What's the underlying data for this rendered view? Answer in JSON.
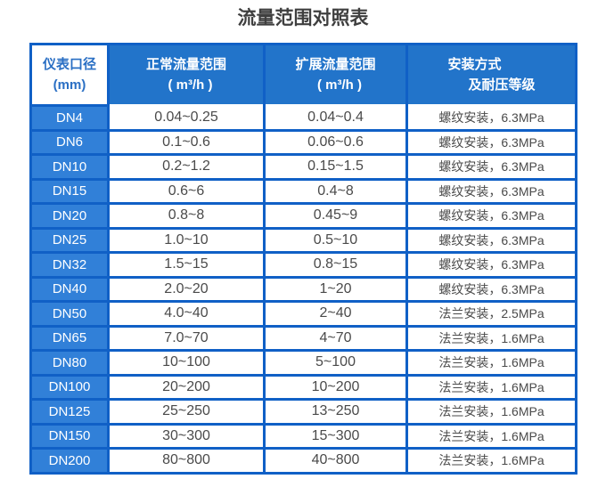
{
  "page": {
    "title": "流量范围对照表"
  },
  "colors": {
    "table_border_blue": "#1060c6",
    "header_bg_blue": "#2274ca",
    "diameter_column_bg_blue": "#3180d8",
    "header_text": "#ffffff",
    "diameter_header_text_blue": "#2a6fc4",
    "body_text_gray": "#4a4a4a",
    "title_text_gray": "#3f3f3f"
  },
  "table": {
    "headers": {
      "diameter": {
        "line1": "仪表口径",
        "line2": "(mm)"
      },
      "normal": {
        "line1": "正常流量范围",
        "line2": "( m³/h )"
      },
      "extended": {
        "line1": "扩展流量范围",
        "line2": "( m³/h )"
      },
      "installation": {
        "line1": "安装方式",
        "line2": "及耐压等级"
      }
    },
    "rows": [
      {
        "diameter": "DN4",
        "normal": "0.04~0.25",
        "extended": "0.04~0.4",
        "installation": "螺纹安装，6.3MPa"
      },
      {
        "diameter": "DN6",
        "normal": "0.1~0.6",
        "extended": "0.06~0.6",
        "installation": "螺纹安装，6.3MPa"
      },
      {
        "diameter": "DN10",
        "normal": "0.2~1.2",
        "extended": "0.15~1.5",
        "installation": "螺纹安装，6.3MPa"
      },
      {
        "diameter": "DN15",
        "normal": "0.6~6",
        "extended": "0.4~8",
        "installation": "螺纹安装，6.3MPa"
      },
      {
        "diameter": "DN20",
        "normal": "0.8~8",
        "extended": "0.45~9",
        "installation": "螺纹安装，6.3MPa"
      },
      {
        "diameter": "DN25",
        "normal": "1.0~10",
        "extended": "0.5~10",
        "installation": "螺纹安装，6.3MPa"
      },
      {
        "diameter": "DN32",
        "normal": "1.5~15",
        "extended": "0.8~15",
        "installation": "螺纹安装，6.3MPa"
      },
      {
        "diameter": "DN40",
        "normal": "2.0~20",
        "extended": "1~20",
        "installation": "螺纹安装，6.3MPa"
      },
      {
        "diameter": "DN50",
        "normal": "4.0~40",
        "extended": "2~40",
        "installation": "法兰安装，2.5MPa"
      },
      {
        "diameter": "DN65",
        "normal": "7.0~70",
        "extended": "4~70",
        "installation": "法兰安装，1.6MPa"
      },
      {
        "diameter": "DN80",
        "normal": "10~100",
        "extended": "5~100",
        "installation": "法兰安装，1.6MPa"
      },
      {
        "diameter": "DN100",
        "normal": "20~200",
        "extended": "10~200",
        "installation": "法兰安装，1.6MPa"
      },
      {
        "diameter": "DN125",
        "normal": "25~250",
        "extended": "13~250",
        "installation": "法兰安装，1.6MPa"
      },
      {
        "diameter": "DN150",
        "normal": "30~300",
        "extended": "15~300",
        "installation": "法兰安装，1.6MPa"
      },
      {
        "diameter": "DN200",
        "normal": "80~800",
        "extended": "40~800",
        "installation": "法兰安装，1.6MPa"
      }
    ]
  }
}
